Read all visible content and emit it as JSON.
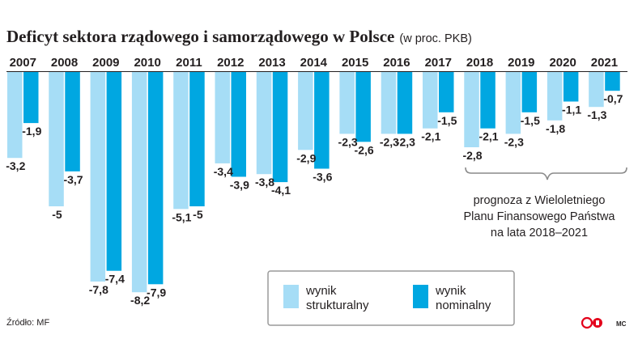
{
  "chart_data": {
    "type": "bar",
    "title": "Deficyt sektora rządowego i samorządowego w Polsce",
    "subtitle": "(w proc. PKB)",
    "categories": [
      "2007",
      "2008",
      "2009",
      "2010",
      "2011",
      "2012",
      "2013",
      "2014",
      "2015",
      "2016",
      "2017",
      "2018",
      "2019",
      "2020",
      "2021"
    ],
    "series": [
      {
        "name": "wynik strukturalny",
        "color": "#a6ddf6",
        "values": [
          -3.2,
          -5,
          -7.8,
          -8.2,
          -5.1,
          -3.4,
          -3.8,
          -2.9,
          -2.3,
          -2.3,
          -2.1,
          -2.8,
          -2.3,
          -1.8,
          -1.3
        ],
        "labels": [
          "-3,2",
          "-5",
          "-7,8",
          "-8,2",
          "-5,1",
          "-3,4",
          "-3,8",
          "-2,9",
          "-2,3",
          "-2,3",
          "-2,1",
          "-2,8",
          "-2,3",
          "-1,8",
          "-1,3"
        ]
      },
      {
        "name": "wynik nominalny",
        "color": "#00a7e1",
        "values": [
          -1.9,
          -3.7,
          -7.4,
          -7.9,
          -5,
          -3.9,
          -4.1,
          -3.6,
          -2.6,
          -2.3,
          -1.5,
          -2.1,
          -1.5,
          -1.1,
          -0.7
        ],
        "labels": [
          "-1,9",
          "-3,7",
          "-7,4",
          "-7,9",
          "-5",
          "-3,9",
          "-4,1",
          "-3,6",
          "-2,6",
          "-2,3",
          "-1,5",
          "-2,1",
          "-1,5",
          "-1,1",
          "-0,7"
        ]
      }
    ],
    "ylim": [
      -8.2,
      0
    ],
    "grid": false,
    "legend_position": "bottom-right",
    "forecast_note": [
      "prognoza z Wieloletniego",
      "Planu Finansowego Państwa",
      "na lata 2018–2021"
    ]
  },
  "legend": {
    "structural_label": [
      "wynik",
      "strukturalny"
    ],
    "nominal_label": [
      "wynik",
      "nominalny"
    ]
  },
  "footer": {
    "source": "Źródło: MF",
    "author": "MC"
  }
}
